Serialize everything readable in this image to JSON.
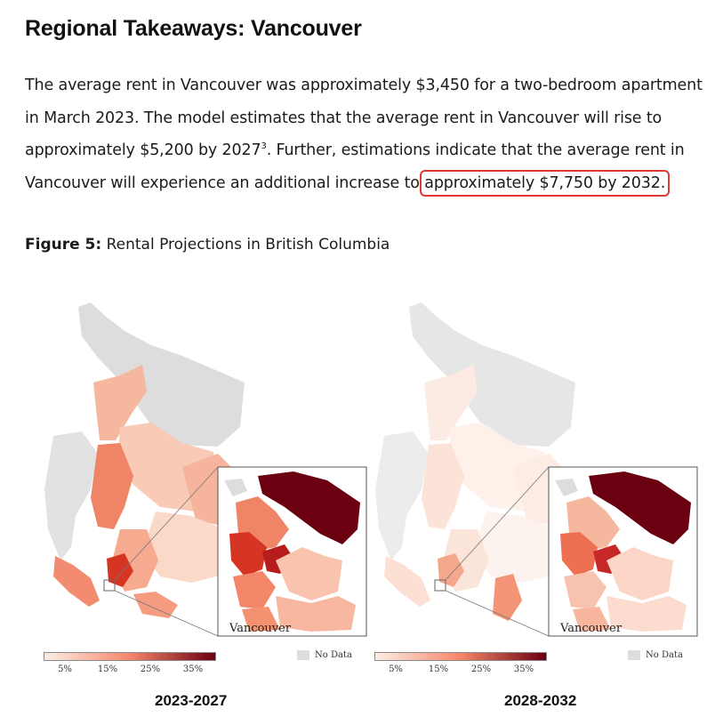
{
  "heading": "Regional Takeaways: Vancouver",
  "paragraph": {
    "part1": "The average rent in Vancouver was approximately $3,450 for a two-bedroom apartment in March 2023. The model estimates that the average rent in Vancouver will rise to approximately $5,200 by 2027",
    "footnote": "3",
    "part2": ".  Further, estimations indicate that the average rent in Vancouver will experience an additional increase to ",
    "highlight": "approximately $7,750 by 2032",
    "part3": "."
  },
  "figure": {
    "label": "Figure 5:",
    "caption": "Rental Projections in British Columbia"
  },
  "maps": [
    {
      "period": "2023-2027",
      "inset_label": "Vancouver"
    },
    {
      "period": "2028-2032",
      "inset_label": "Vancouver"
    }
  ],
  "legend": {
    "ticks": [
      "5%",
      "15%",
      "25%",
      "35%"
    ],
    "no_data": "No Data",
    "colors": {
      "low": "#fdeee6",
      "mid": "#f4876a",
      "high": "#6b0011",
      "no_data": "#dddddd"
    }
  }
}
